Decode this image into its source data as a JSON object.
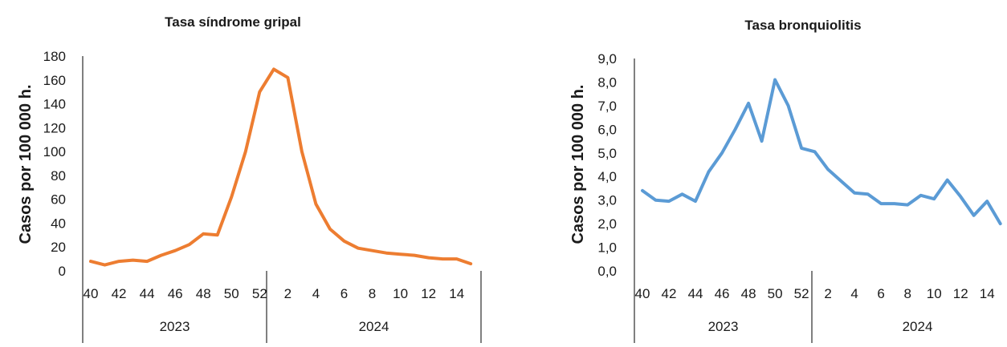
{
  "chart_data": [
    {
      "type": "line",
      "title": "Tasa síndrome gripal",
      "ylabel": "Casos por 100 000 h.",
      "xlabel": "",
      "ylim": [
        0,
        180
      ],
      "yticks": [
        "0",
        "20",
        "40",
        "60",
        "80",
        "100",
        "120",
        "140",
        "160",
        "180"
      ],
      "x_tick_labels": [
        "40",
        "42",
        "44",
        "46",
        "48",
        "50",
        "52",
        "2",
        "4",
        "6",
        "8",
        "10",
        "12",
        "14"
      ],
      "years": [
        "2023",
        "2024"
      ],
      "weeks": [
        "40",
        "41",
        "42",
        "43",
        "44",
        "45",
        "46",
        "47",
        "48",
        "49",
        "50",
        "51",
        "52",
        "1",
        "2",
        "3",
        "4",
        "5",
        "6",
        "7",
        "8",
        "9",
        "10",
        "11",
        "12",
        "13",
        "14",
        "15"
      ],
      "color": "#ED7D31",
      "grid": false,
      "series": [
        {
          "values": [
            8,
            5,
            8,
            9,
            8,
            13,
            17,
            22,
            31,
            30,
            62,
            100,
            150,
            169,
            162,
            100,
            56,
            35,
            25,
            19,
            17,
            15,
            14,
            13,
            11,
            10,
            10,
            6
          ]
        }
      ]
    },
    {
      "type": "line",
      "title": "Tasa bronquiolitis",
      "ylabel": "Casos por 100 000 h.",
      "xlabel": "",
      "ylim": [
        0,
        9
      ],
      "yticks": [
        "0,0",
        "1,0",
        "2,0",
        "3,0",
        "4,0",
        "5,0",
        "6,0",
        "7,0",
        "8,0",
        "9,0"
      ],
      "x_tick_labels": [
        "40",
        "42",
        "44",
        "46",
        "48",
        "50",
        "52",
        "2",
        "4",
        "6",
        "8",
        "10",
        "12",
        "14"
      ],
      "years": [
        "2023",
        "2024"
      ],
      "weeks": [
        "40",
        "41",
        "42",
        "43",
        "44",
        "45",
        "46",
        "47",
        "48",
        "49",
        "50",
        "51",
        "52",
        "1",
        "2",
        "3",
        "4",
        "5",
        "6",
        "7",
        "8",
        "9",
        "10",
        "11",
        "12",
        "13",
        "14",
        "15"
      ],
      "color": "#5B9BD5",
      "grid": false,
      "series": [
        {
          "values": [
            3.4,
            3.0,
            2.95,
            3.25,
            2.95,
            4.2,
            5.0,
            6.0,
            7.1,
            5.5,
            8.1,
            7.0,
            5.2,
            5.05,
            4.3,
            3.8,
            3.3,
            3.25,
            2.85,
            2.85,
            2.8,
            3.2,
            3.05,
            3.85,
            3.15,
            2.35,
            2.95,
            2.0
          ]
        }
      ]
    }
  ]
}
